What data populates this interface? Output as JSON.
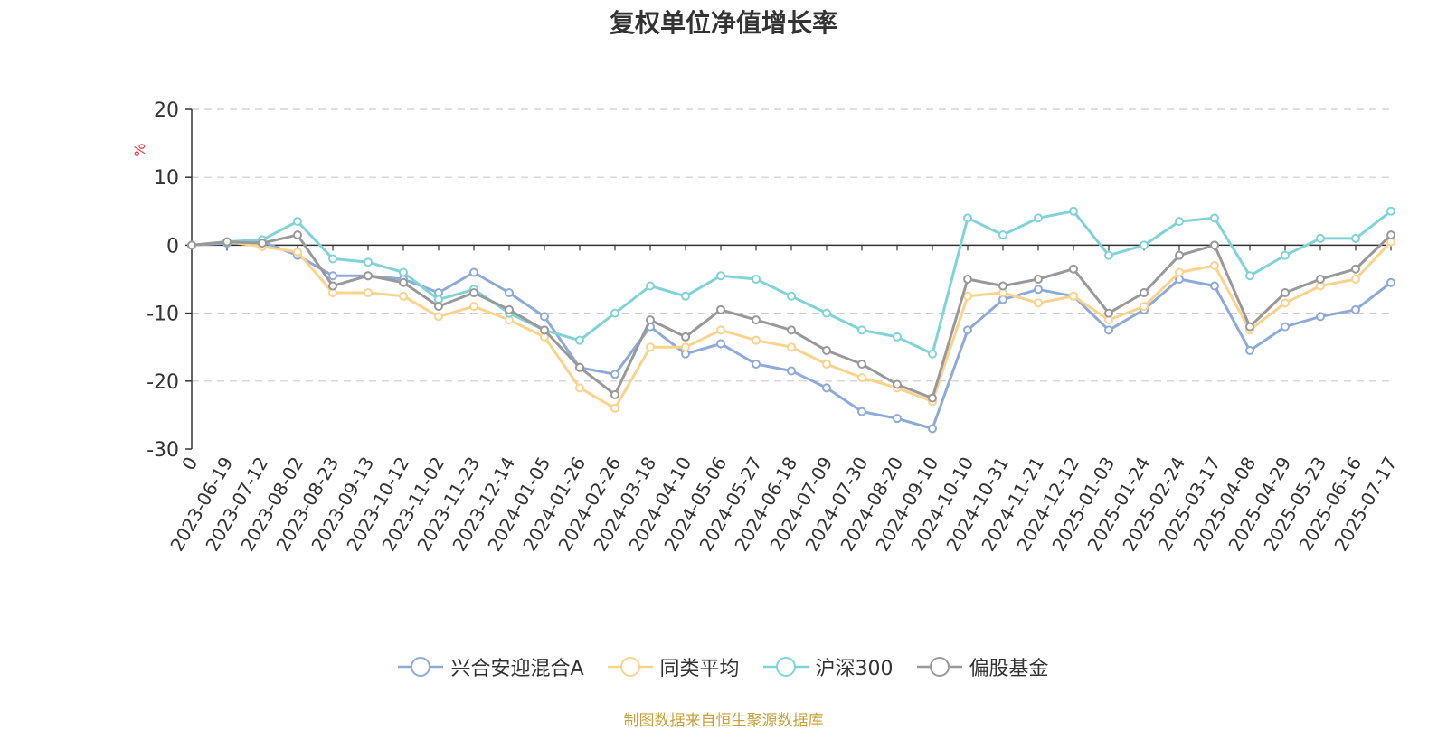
{
  "chart_data": {
    "type": "line",
    "title": "复权单位净值增长率",
    "ylabel": "%",
    "ylim": [
      -30,
      20
    ],
    "yticks": [
      20,
      10,
      0,
      -10,
      -20,
      -30
    ],
    "x_ticks": [
      "0",
      "2023-06-19",
      "2023-07-12",
      "2023-08-02",
      "2023-08-23",
      "2023-09-13",
      "2023-10-12",
      "2023-11-02",
      "2023-11-23",
      "2023-12-14",
      "2024-01-05",
      "2024-01-26",
      "2024-02-26",
      "2024-03-18",
      "2024-04-10",
      "2024-05-06",
      "2024-05-27",
      "2024-06-18",
      "2024-07-09",
      "2024-07-30",
      "2024-08-20",
      "2024-09-10",
      "2024-10-10",
      "2024-10-31",
      "2024-11-21",
      "2024-12-12",
      "2025-01-03",
      "2025-01-24",
      "2025-02-24",
      "2025-03-17",
      "2025-04-08",
      "2025-04-29",
      "2025-05-23",
      "2025-06-16",
      "2025-07-17"
    ],
    "legend_position": "bottom",
    "grid": "horizontal-dashed",
    "series": [
      {
        "name": "兴合安迎混合A",
        "color": "#8eaad8",
        "x": [
          0,
          1,
          2,
          3,
          4,
          5,
          6,
          7,
          8,
          9,
          10,
          11,
          12,
          13,
          14,
          15,
          16,
          17,
          18,
          19,
          20,
          21,
          22,
          23,
          24,
          25,
          26,
          27,
          28,
          29,
          30,
          31,
          32,
          33,
          34
        ],
        "values": [
          0,
          0.3,
          0.5,
          -1.5,
          -4.5,
          -4.5,
          -5,
          -7,
          -4,
          -7,
          -10.5,
          -18,
          -19,
          -12,
          -16,
          -14.5,
          -17.5,
          -18.5,
          -21,
          -24.5,
          -25.5,
          -27,
          -12.5,
          -8,
          -6.5,
          -7.5,
          -12.5,
          -9.5,
          -5,
          -6,
          -15.5,
          -12,
          -10.5,
          -9.5,
          -5.5
        ]
      },
      {
        "name": "同类平均",
        "color": "#fbd38d",
        "x": [
          0,
          1,
          2,
          3,
          4,
          5,
          6,
          7,
          8,
          9,
          10,
          11,
          12,
          13,
          14,
          15,
          16,
          17,
          18,
          19,
          20,
          21,
          22,
          23,
          24,
          25,
          26,
          27,
          28,
          29,
          30,
          31,
          32,
          33,
          34
        ],
        "values": [
          0,
          0.5,
          -0.2,
          -1,
          -7,
          -7,
          -7.5,
          -10.5,
          -9,
          -11,
          -13.5,
          -21,
          -24,
          -15,
          -15,
          -12.5,
          -14,
          -15,
          -17.5,
          -19.5,
          -21,
          -23,
          -7.5,
          -7,
          -8.5,
          -7.5,
          -11,
          -9,
          -4,
          -3,
          -12.5,
          -8.5,
          -6,
          -5,
          0.5
        ]
      },
      {
        "name": "沪深300",
        "color": "#80d4d6",
        "x": [
          0,
          1,
          2,
          3,
          4,
          5,
          6,
          7,
          8,
          9,
          10,
          11,
          12,
          13,
          14,
          15,
          16,
          17,
          18,
          19,
          20,
          21,
          22,
          23,
          24,
          25,
          26,
          27,
          28,
          29,
          30,
          31,
          32,
          33,
          34
        ],
        "values": [
          0,
          0.5,
          0.8,
          3.5,
          -2,
          -2.5,
          -4,
          -8,
          -6.5,
          -10,
          -12.5,
          -14,
          -10,
          -6,
          -7.5,
          -4.5,
          -5,
          -7.5,
          -10,
          -12.5,
          -13.5,
          -16,
          4,
          1.5,
          4,
          5,
          -1.5,
          0,
          3.5,
          4,
          -4.5,
          -1.5,
          1,
          1,
          5
        ]
      },
      {
        "name": "偏股基金",
        "color": "#999999",
        "x": [
          0,
          1,
          2,
          3,
          4,
          5,
          6,
          7,
          8,
          9,
          10,
          11,
          12,
          13,
          14,
          15,
          16,
          17,
          18,
          19,
          20,
          21,
          22,
          23,
          24,
          25,
          26,
          27,
          28,
          29,
          30,
          31,
          32,
          33,
          34
        ],
        "values": [
          0,
          0.5,
          0.3,
          1.5,
          -6,
          -4.5,
          -5.5,
          -9,
          -7,
          -9.5,
          -12.5,
          -18,
          -22,
          -11,
          -13.5,
          -9.5,
          -11,
          -12.5,
          -15.5,
          -17.5,
          -20.5,
          -22.5,
          -5,
          -6,
          -5,
          -3.5,
          -10,
          -7,
          -1.5,
          0,
          -12,
          -7,
          -5,
          -3.5,
          1.5
        ]
      }
    ]
  },
  "legend": {
    "items": [
      "兴合安迎混合A",
      "同类平均",
      "沪深300",
      "偏股基金"
    ]
  },
  "source_note": "制图数据来自恒生聚源数据库"
}
